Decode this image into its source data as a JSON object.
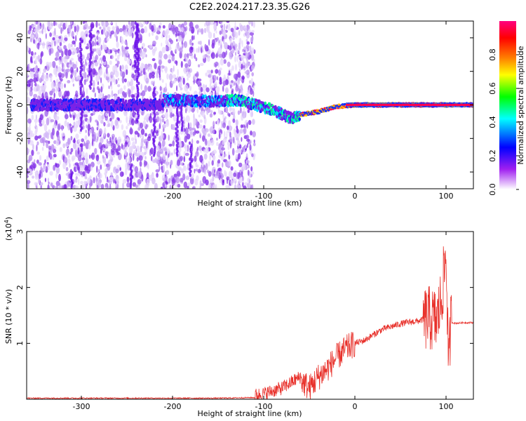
{
  "title": "C2E2.2024.217.23.35.G26",
  "chart_data": [
    {
      "type": "heatmap",
      "xlabel": "Height of straight line (km)",
      "ylabel": "Frequency (Hz)",
      "xlim": [
        -360,
        130
      ],
      "ylim": [
        -50,
        50
      ],
      "xticks": [
        -300,
        -200,
        -100,
        0,
        100
      ],
      "yticks": [
        -40,
        -20,
        0,
        20,
        40
      ],
      "colorbar": {
        "label": "Normalized spectral amplitude",
        "range": [
          0,
          1
        ],
        "ticks": [
          "0.0",
          "0.2",
          "0.4",
          "0.6",
          "0.8"
        ],
        "colors": [
          "#ffffff",
          "#a020f0",
          "#0000ff",
          "#00ffff",
          "#00ff00",
          "#ffff00",
          "#ff8000",
          "#ff0000",
          "#ff0080"
        ]
      },
      "ridge": {
        "x": [
          -210,
          -150,
          -130,
          -110,
          -90,
          -70,
          -60,
          -40,
          -20,
          0,
          20,
          60,
          90,
          100,
          130
        ],
        "y": [
          3,
          2,
          3,
          0,
          -3,
          -8,
          -6,
          -4,
          -1,
          0,
          0,
          0,
          0,
          0,
          0
        ]
      }
    },
    {
      "type": "line",
      "xlabel": "Height of straight line (km)",
      "ylabel": "SNR (10 * v/v)",
      "yscale_label": "(x10^4)",
      "xlim": [
        -360,
        130
      ],
      "ylim": [
        0,
        3
      ],
      "xticks": [
        -300,
        -200,
        -100,
        0,
        100
      ],
      "yticks": [
        1,
        2,
        3
      ],
      "color": "#e8302a",
      "series": [
        {
          "x": [
            -360,
            -250,
            -150,
            -110,
            -100,
            -90,
            -80,
            -70,
            -60,
            -50,
            -40,
            -30,
            -20,
            -10,
            0,
            10,
            20,
            30,
            40,
            50,
            60,
            70,
            80,
            90,
            95,
            100,
            103,
            105,
            110,
            120,
            130
          ],
          "y": [
            0.01,
            0.01,
            0.01,
            0.02,
            0.05,
            0.1,
            0.15,
            0.25,
            0.35,
            0.2,
            0.4,
            0.55,
            0.75,
            0.9,
            1.0,
            1.05,
            1.15,
            1.25,
            1.3,
            1.35,
            1.38,
            1.4,
            1.45,
            1.4,
            1.8,
            2.6,
            0.5,
            1.38,
            1.36,
            1.37,
            1.37
          ]
        }
      ]
    }
  ]
}
